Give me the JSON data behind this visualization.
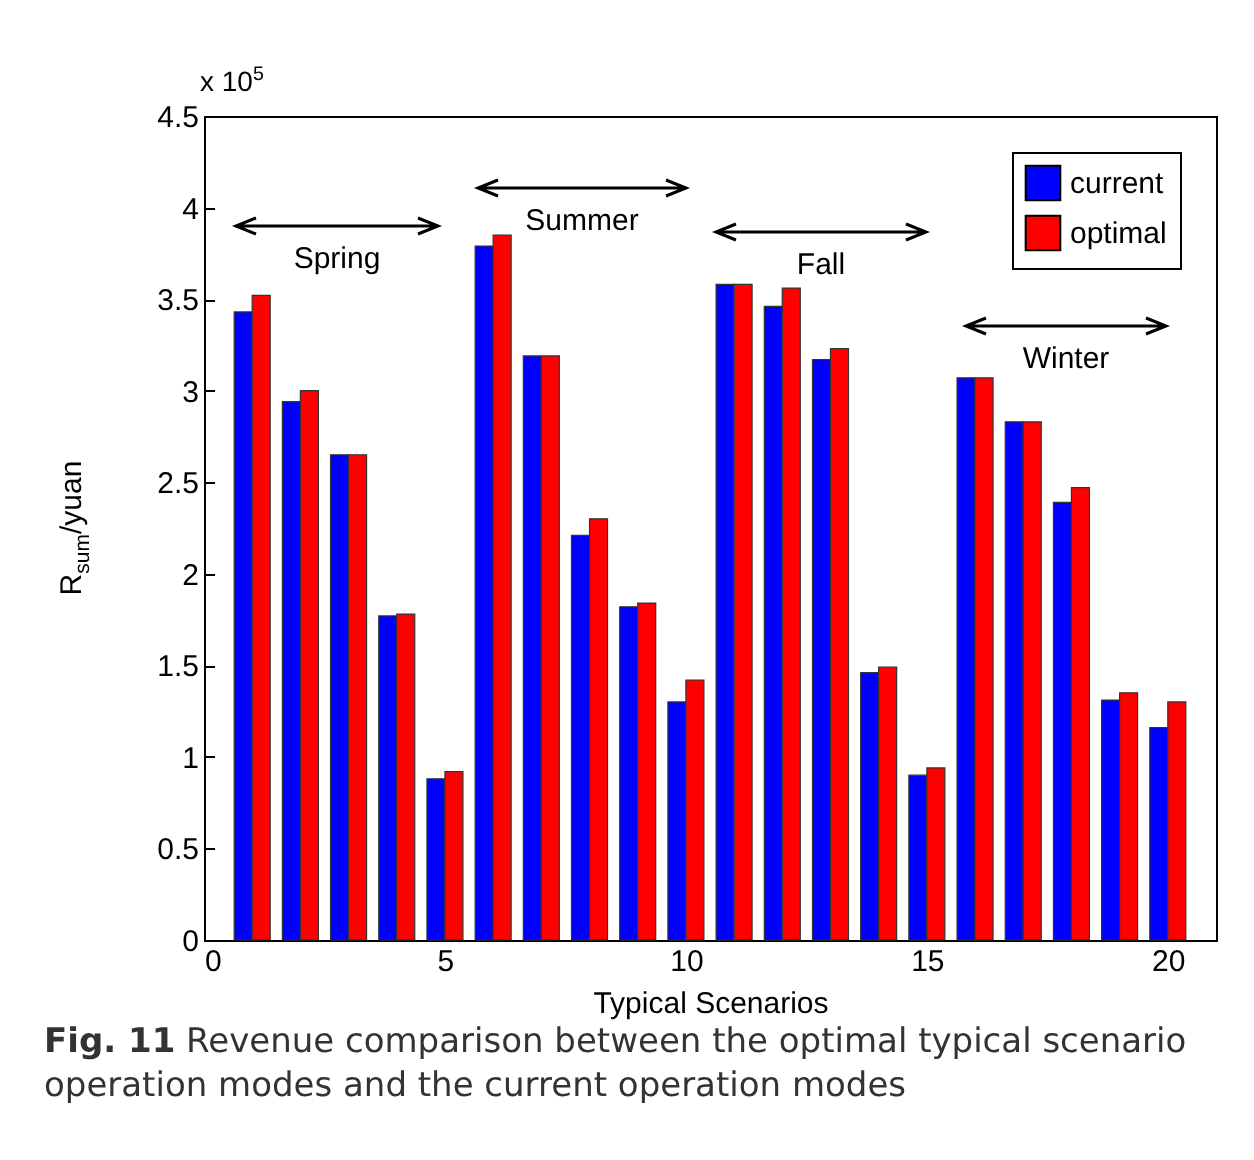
{
  "chart_data": {
    "type": "bar",
    "xlabel": "Typical Scenarios",
    "ylabel": "R$_{sum}$/yuan",
    "x": [
      1,
      2,
      3,
      4,
      5,
      6,
      7,
      8,
      9,
      10,
      11,
      12,
      13,
      14,
      15,
      16,
      17,
      18,
      19,
      20
    ],
    "series": [
      {
        "name": "current",
        "color": "#0000ff",
        "values": [
          3.43,
          2.94,
          2.65,
          1.77,
          0.88,
          3.79,
          3.19,
          2.21,
          1.82,
          1.3,
          3.58,
          3.46,
          3.17,
          1.46,
          0.9,
          3.07,
          2.83,
          2.39,
          1.31,
          1.16
        ]
      },
      {
        "name": "optimal",
        "color": "#ff0000",
        "values": [
          3.52,
          3.0,
          2.65,
          1.78,
          0.92,
          3.85,
          3.19,
          2.3,
          1.84,
          1.42,
          3.58,
          3.56,
          3.23,
          1.49,
          0.94,
          3.07,
          2.83,
          2.47,
          1.35,
          1.3
        ]
      }
    ],
    "xlim": [
      0,
      21
    ],
    "xticks": [
      0,
      5,
      10,
      15,
      20
    ],
    "ylim": [
      0,
      4.5
    ],
    "yticks": [
      0,
      0.5,
      1,
      1.5,
      2,
      2.5,
      3,
      3.5,
      4,
      4.5
    ],
    "grid": false,
    "legend": "top right",
    "annotations": [
      "x 10$^{5}$",
      "Spring",
      "Summer",
      "Fall",
      "Winter",
      "Fig. 11 Revenue comparison between the optimal typical scenario operation modes and the current operation modes"
    ]
  }
}
